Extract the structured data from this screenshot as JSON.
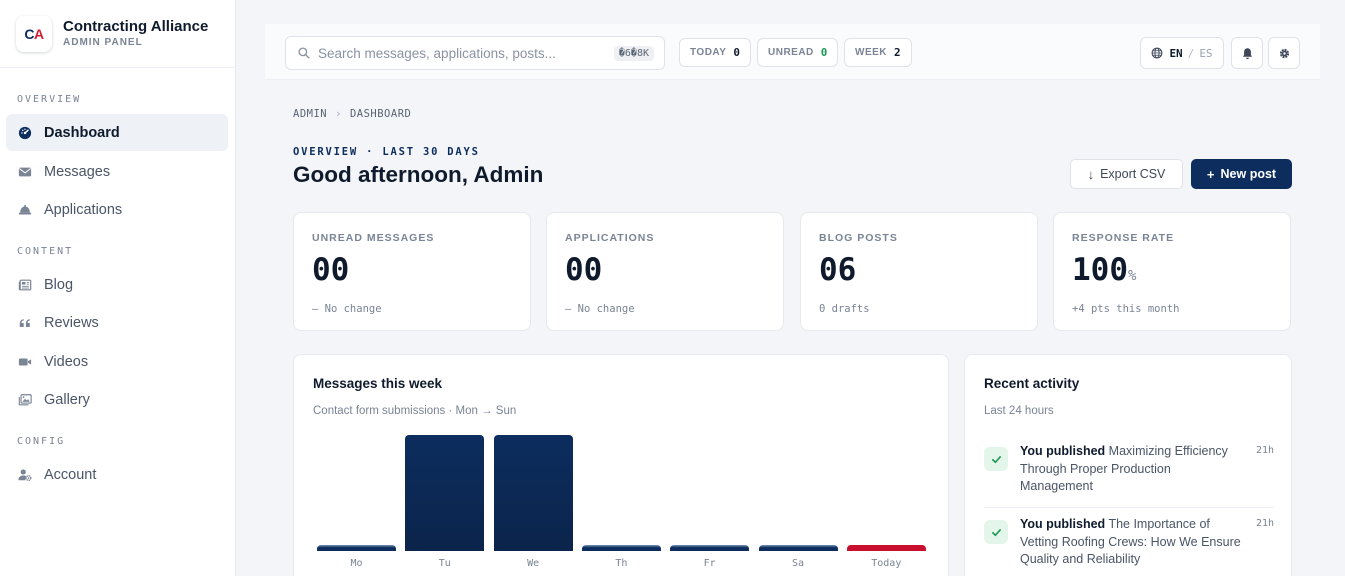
{
  "brand": {
    "logo_c": "C",
    "logo_a": "A",
    "name": "Contracting Alliance",
    "subtitle": "ADMIN PANEL"
  },
  "sidebar": {
    "sections": [
      "OVERVIEW",
      "CONTENT",
      "CONFIG"
    ],
    "items": [
      {
        "label": "Dashboard",
        "icon": "gauge-icon",
        "active": true
      },
      {
        "label": "Messages",
        "icon": "envelope-icon"
      },
      {
        "label": "Applications",
        "icon": "hard-hat-icon"
      },
      {
        "label": "Blog",
        "icon": "newspaper-icon"
      },
      {
        "label": "Reviews",
        "icon": "quote-icon"
      },
      {
        "label": "Videos",
        "icon": "video-icon"
      },
      {
        "label": "Gallery",
        "icon": "images-icon"
      },
      {
        "label": "Account",
        "icon": "user-gear-icon"
      }
    ]
  },
  "topbar": {
    "search_placeholder": "Search messages, applications, posts...",
    "search_shortcut": "�6�8K",
    "pills": [
      {
        "label": "TODAY",
        "value": "0"
      },
      {
        "label": "UNREAD",
        "value": "0"
      },
      {
        "label": "WEEK",
        "value": "2"
      }
    ],
    "lang": {
      "active": "EN",
      "separator": "/",
      "other": "ES"
    }
  },
  "breadcrumb": {
    "root": "ADMIN",
    "current": "DASHBOARD"
  },
  "header": {
    "eyebrow": "OVERVIEW · LAST 30 DAYS",
    "greeting": "Good afternoon, Admin",
    "export_label": "Export CSV",
    "new_post_label": "New post"
  },
  "stats": [
    {
      "label": "UNREAD MESSAGES",
      "value": "00",
      "unit": "",
      "sub": "— No change"
    },
    {
      "label": "APPLICATIONS",
      "value": "00",
      "unit": "",
      "sub": "— No change"
    },
    {
      "label": "BLOG POSTS",
      "value": "06",
      "unit": "",
      "sub": "0 drafts"
    },
    {
      "label": "RESPONSE RATE",
      "value": "100",
      "unit": "%",
      "sub": "+4 pts this month"
    }
  ],
  "messages_chart": {
    "title": "Messages this week",
    "subtitle": "Contact form submissions · Mon → Sun"
  },
  "chart_data": {
    "type": "bar",
    "categories": [
      "Mo",
      "Tu",
      "We",
      "Th",
      "Fr",
      "Sa",
      "Today"
    ],
    "values": [
      0,
      1,
      1,
      0,
      0,
      0,
      0
    ],
    "highlight": "Today",
    "colors": {
      "bar": "#0c2d5e",
      "today": "#c8102e"
    }
  },
  "activity": {
    "title": "Recent activity",
    "subtitle": "Last 24 hours",
    "items": [
      {
        "actor": "You published",
        "text": "Maximizing Efficiency Through Proper Production Management",
        "time": "21h"
      },
      {
        "actor": "You published",
        "text": "The Importance of Vetting Roofing Crews: How We Ensure Quality and Reliability",
        "time": "21h"
      }
    ]
  },
  "colors": {
    "navy": "#0c2d5e",
    "red": "#c8102e",
    "green": "#1e9a56"
  }
}
